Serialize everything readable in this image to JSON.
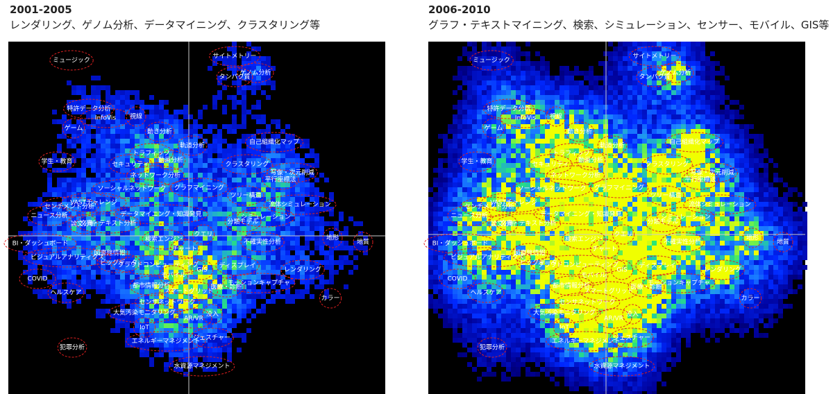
{
  "panels": [
    {
      "title": "2001-2005",
      "subtitle": "レンダリング、ゲノム分析、データマイニング、クラスタリング等"
    },
    {
      "title": "2006-2010",
      "subtitle": "グラフ・テキストマイニング、検索、シミュレーション、センサー、モバイル、GIS等"
    }
  ],
  "topics": [
    "ミュージック",
    "サイトメトリー",
    "ゲノム分析",
    "タンパク質",
    "特許データ分析",
    "InfoVis",
    "視線",
    "ゲーム",
    "動き分析",
    "軌道分析",
    "自己組織化マップ",
    "トラフィック",
    "学生・教育",
    "セキュリティ",
    "動画分析",
    "クラスタリング",
    "写像・次元削減",
    "ネットワーク分析",
    "平行座標法",
    "ソーシャルネットワーク",
    "グラフマイニング",
    "ツリー構造",
    "VASTチャレンジ",
    "流体シミュレーション",
    "センチメント分析",
    "ニュース分析",
    "データマイニング・知識発見",
    "分類モデル",
    "シミュレーション",
    "論文分析",
    "文書・テキスト分析",
    "クエリ",
    "検索エンジン",
    "地形",
    "地質",
    "BI・ダッシュボード",
    "不確実性分析",
    "チャート",
    "図書館情報",
    "ビジュアルアナリティクス",
    "ビッグデータ",
    "クラウドコンピューティング",
    "GIS",
    "ディスプレイ",
    "レンダリング",
    "COVID",
    "モバイル",
    "モーションキャプチャ",
    "都市情報分析",
    "スマートグリッド",
    "医療・診断",
    "ヘルスケア",
    "カラー",
    "センサネットワーク",
    "大気汚染モニタリング",
    "AR/VR",
    "没入",
    "IoT",
    "エネルギーマネジメント",
    "ジェスチャー",
    "犯罪分析",
    "水資源マネジメント"
  ]
}
